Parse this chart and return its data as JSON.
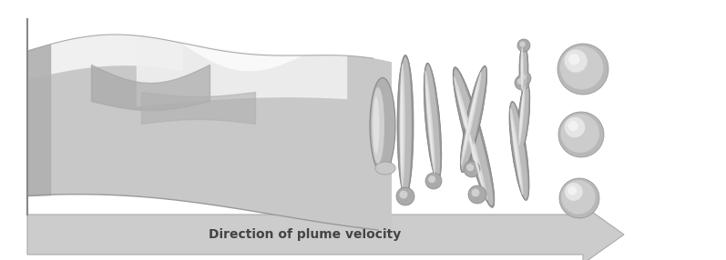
{
  "background_color": "#ffffff",
  "arrow_color": "#cccccc",
  "arrow_edge_color": "#aaaaaa",
  "arrow_text": "Direction of plume velocity",
  "arrow_text_color": "#444444",
  "arrow_text_fontsize": 10,
  "arrow_text_fontweight": "bold",
  "figure_width": 7.97,
  "figure_height": 2.86,
  "dpi": 100,
  "sheet_base": "#c0c0c0",
  "sheet_light": "#f0f0f0",
  "sheet_dark": "#808080",
  "ligament_base": "#b0b0b0",
  "ligament_light": "#d8d8d8",
  "ligament_dark": "#888888",
  "droplet_base": "#c0c0c0",
  "droplet_light": "#e8e8e8",
  "droplet_dark": "#909090"
}
